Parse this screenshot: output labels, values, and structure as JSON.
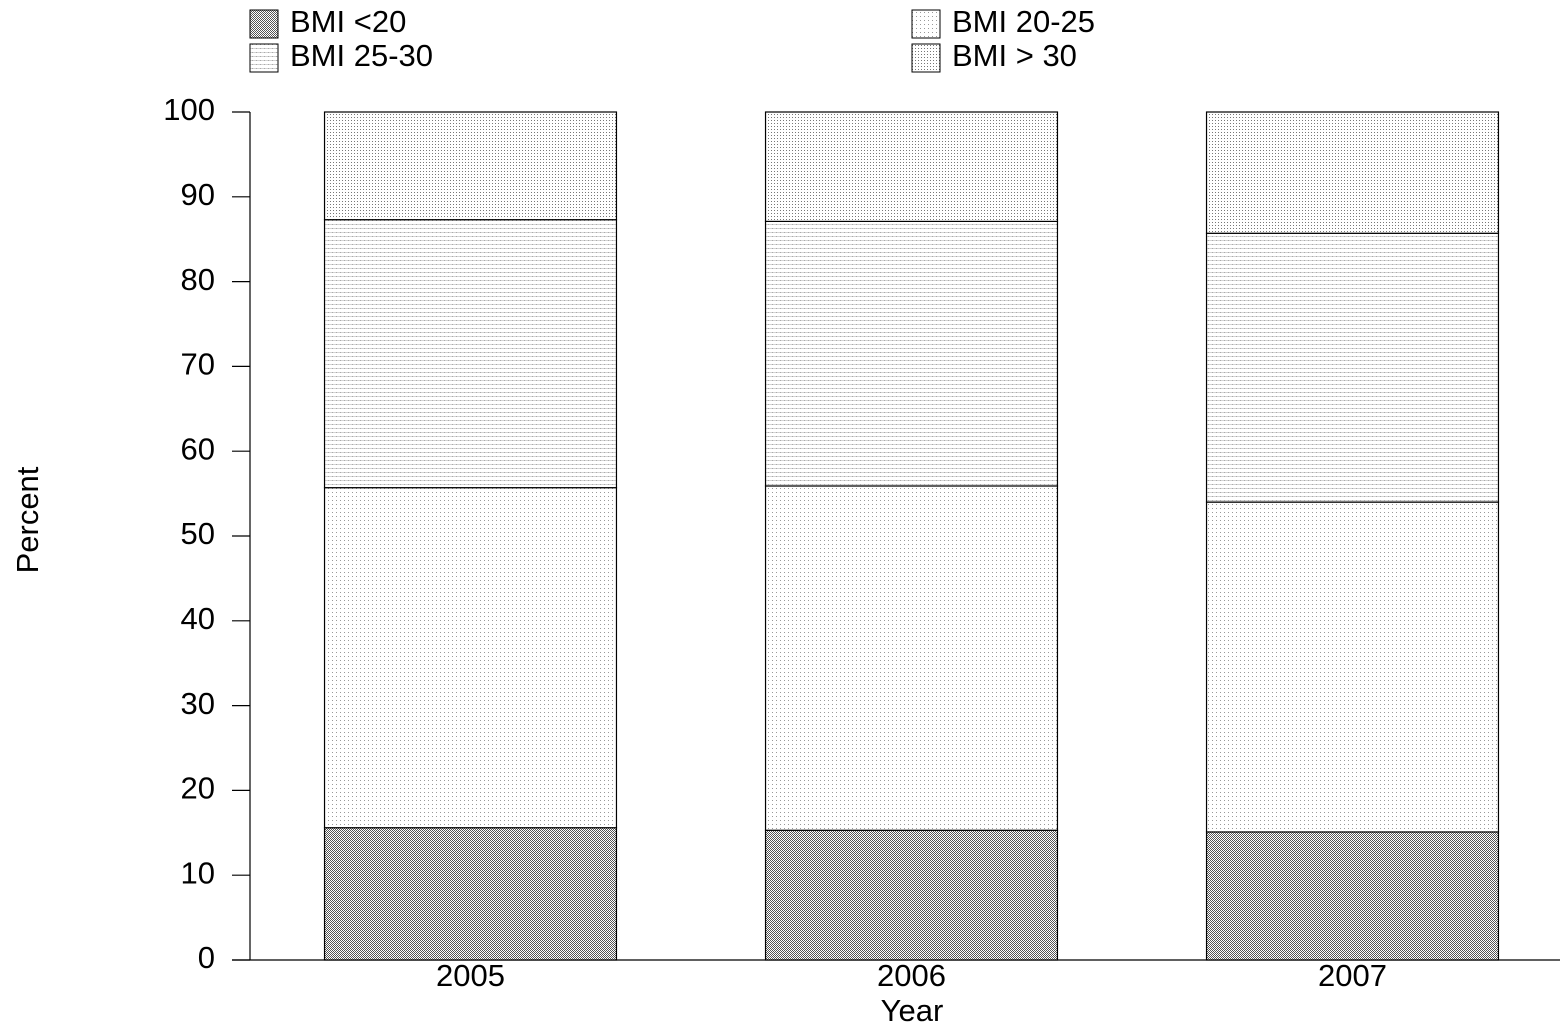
{
  "chart_data": {
    "type": "stacked-bar",
    "x_label": "Year",
    "y_label": "Percent",
    "categories": [
      "2005",
      "2006",
      "2007"
    ],
    "series": [
      {
        "name": "BMI <20",
        "color": "#555555",
        "values": [
          15.6,
          15.3,
          15.1
        ]
      },
      {
        "name": "BMI 20-25",
        "color": "#999999",
        "values": [
          40.1,
          40.6,
          38.9
        ]
      },
      {
        "name": "BMI 25-30",
        "color": "#aaaaaa",
        "values": [
          31.6,
          31.2,
          31.7
        ]
      },
      {
        "name": "BMI > 30",
        "color": "#777777",
        "values": [
          12.7,
          12.9,
          14.3
        ]
      }
    ],
    "ylim": [
      0,
      100
    ],
    "yticks": [
      0,
      10,
      20,
      30,
      40,
      50,
      60,
      70,
      80,
      90,
      100
    ]
  }
}
